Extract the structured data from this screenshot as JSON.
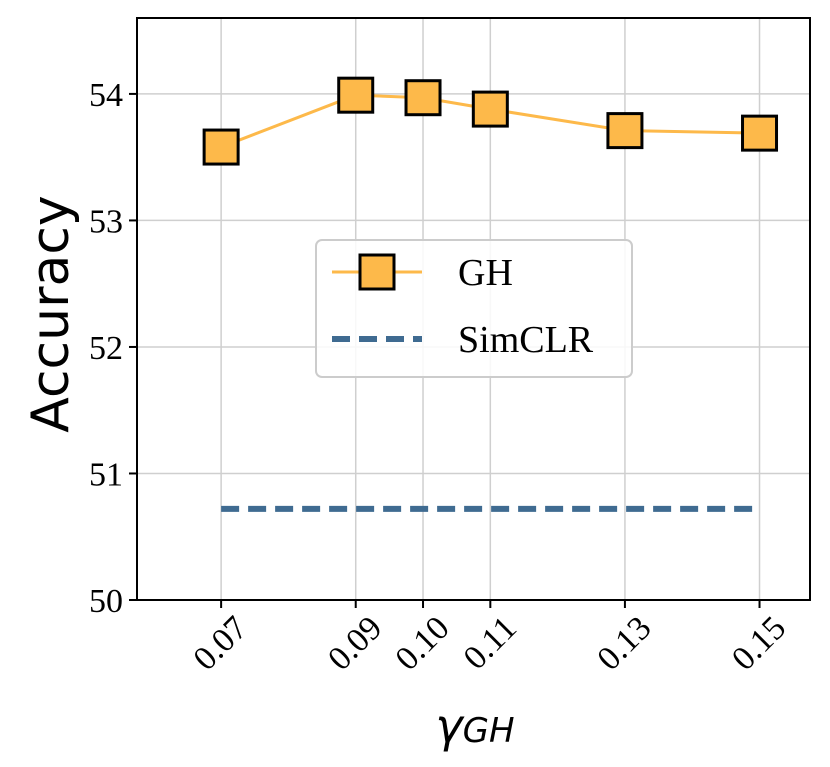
{
  "chart_data": {
    "type": "line",
    "x": [
      0.07,
      0.09,
      0.1,
      0.11,
      0.13,
      0.15
    ],
    "x_tick_labels": [
      "0.07",
      "0.09",
      "0.10",
      "0.11",
      "0.13",
      "0.15"
    ],
    "y_ticks": [
      50,
      51,
      52,
      53,
      54
    ],
    "y_tick_labels": [
      "50",
      "51",
      "52",
      "53",
      "54"
    ],
    "xlim": [
      0.0575,
      0.1575
    ],
    "ylim": [
      50,
      54.6
    ],
    "grid": true,
    "legend_position": "center",
    "ylabel": "Accuracy",
    "xlabel": {
      "symbol": "γ",
      "subscript": "GH"
    },
    "series": [
      {
        "name": "GH",
        "values": [
          53.58,
          53.99,
          53.97,
          53.88,
          53.71,
          53.69
        ],
        "color": "#FDB94A",
        "marker": "square",
        "marker_edge": "#000000"
      },
      {
        "name": "SimCLR",
        "values": [
          50.72,
          50.72,
          50.72,
          50.72,
          50.72,
          50.72
        ],
        "color": "#3F6B91",
        "style": "dashed"
      }
    ]
  }
}
